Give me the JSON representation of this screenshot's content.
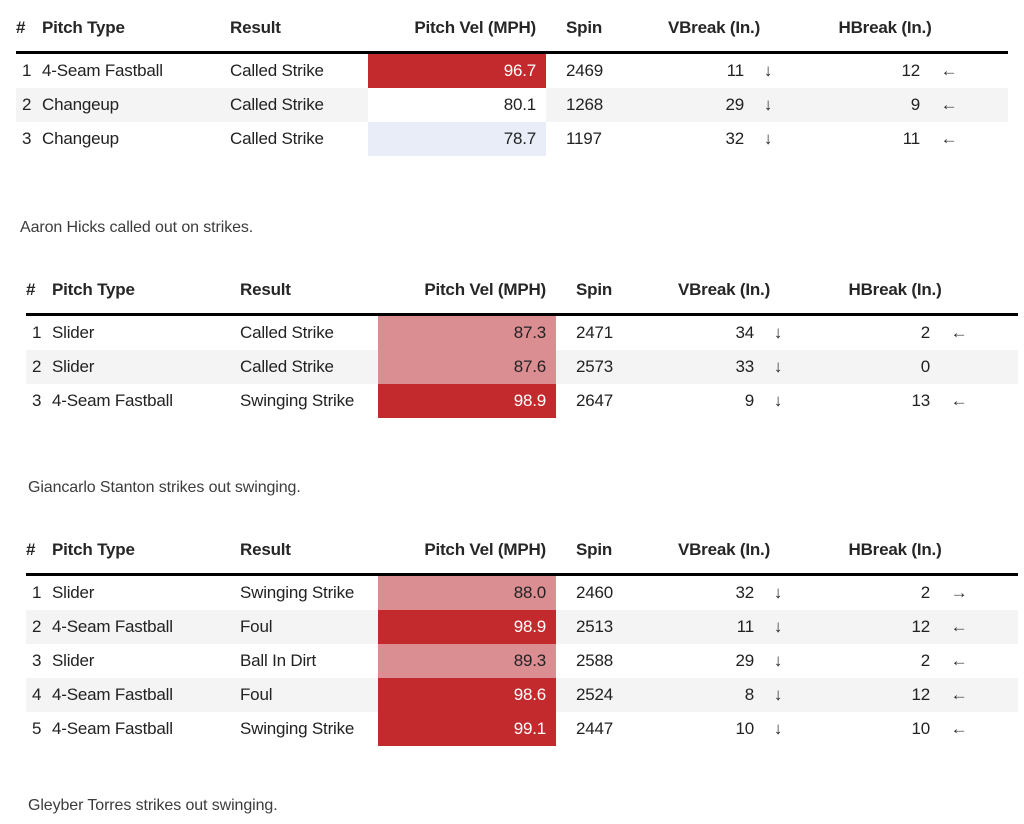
{
  "columns": {
    "num": "#",
    "pitch_type": "Pitch Type",
    "result": "Result",
    "vel": "Pitch Vel (MPH)",
    "spin": "Spin",
    "vbreak": "VBreak (In.)",
    "hbreak": "HBreak (In.)"
  },
  "colors": {
    "vel_hot": "#c32a2d",
    "vel_warm": "#db8e92",
    "vel_cool": "#e8edf7",
    "vel_neutral": "#ffffff",
    "row_stripe": "#f4f4f4",
    "header_rule": "#000000"
  },
  "chart_data": [
    {
      "type": "table",
      "caption": "Aaron Hicks called out on strikes.",
      "rows": [
        {
          "num": "1",
          "pitch_type": "4-Seam Fastball",
          "result": "Called Strike",
          "vel": "96.7",
          "vel_bg": "#c32a2d",
          "vel_color": "#ffffff",
          "spin": "2469",
          "vbreak": "11",
          "vbreak_arrow": "↓",
          "hbreak": "12",
          "hbreak_arrow": "←"
        },
        {
          "num": "2",
          "pitch_type": "Changeup",
          "result": "Called Strike",
          "vel": "80.1",
          "vel_bg": "#ffffff",
          "vel_color": "#222222",
          "spin": "1268",
          "vbreak": "29",
          "vbreak_arrow": "↓",
          "hbreak": "9",
          "hbreak_arrow": "←"
        },
        {
          "num": "3",
          "pitch_type": "Changeup",
          "result": "Called Strike",
          "vel": "78.7",
          "vel_bg": "#e8edf7",
          "vel_color": "#222222",
          "spin": "1197",
          "vbreak": "32",
          "vbreak_arrow": "↓",
          "hbreak": "11",
          "hbreak_arrow": "←"
        }
      ]
    },
    {
      "type": "table",
      "caption": "Giancarlo Stanton strikes out swinging.",
      "rows": [
        {
          "num": "1",
          "pitch_type": "Slider",
          "result": "Called Strike",
          "vel": "87.3",
          "vel_bg": "#db8e92",
          "vel_color": "#222222",
          "spin": "2471",
          "vbreak": "34",
          "vbreak_arrow": "↓",
          "hbreak": "2",
          "hbreak_arrow": "←"
        },
        {
          "num": "2",
          "pitch_type": "Slider",
          "result": "Called Strike",
          "vel": "87.6",
          "vel_bg": "#db8e92",
          "vel_color": "#222222",
          "spin": "2573",
          "vbreak": "33",
          "vbreak_arrow": "↓",
          "hbreak": "0",
          "hbreak_arrow": ""
        },
        {
          "num": "3",
          "pitch_type": "4-Seam Fastball",
          "result": "Swinging Strike",
          "vel": "98.9",
          "vel_bg": "#c32a2d",
          "vel_color": "#ffffff",
          "spin": "2647",
          "vbreak": "9",
          "vbreak_arrow": "↓",
          "hbreak": "13",
          "hbreak_arrow": "←"
        }
      ]
    },
    {
      "type": "table",
      "caption": "Gleyber Torres strikes out swinging.",
      "rows": [
        {
          "num": "1",
          "pitch_type": "Slider",
          "result": "Swinging Strike",
          "vel": "88.0",
          "vel_bg": "#db8e92",
          "vel_color": "#222222",
          "spin": "2460",
          "vbreak": "32",
          "vbreak_arrow": "↓",
          "hbreak": "2",
          "hbreak_arrow": "→"
        },
        {
          "num": "2",
          "pitch_type": "4-Seam Fastball",
          "result": "Foul",
          "vel": "98.9",
          "vel_bg": "#c32a2d",
          "vel_color": "#ffffff",
          "spin": "2513",
          "vbreak": "11",
          "vbreak_arrow": "↓",
          "hbreak": "12",
          "hbreak_arrow": "←"
        },
        {
          "num": "3",
          "pitch_type": "Slider",
          "result": "Ball In Dirt",
          "vel": "89.3",
          "vel_bg": "#db8e92",
          "vel_color": "#222222",
          "spin": "2588",
          "vbreak": "29",
          "vbreak_arrow": "↓",
          "hbreak": "2",
          "hbreak_arrow": "←"
        },
        {
          "num": "4",
          "pitch_type": "4-Seam Fastball",
          "result": "Foul",
          "vel": "98.6",
          "vel_bg": "#c32a2d",
          "vel_color": "#ffffff",
          "spin": "2524",
          "vbreak": "8",
          "vbreak_arrow": "↓",
          "hbreak": "12",
          "hbreak_arrow": "←"
        },
        {
          "num": "5",
          "pitch_type": "4-Seam Fastball",
          "result": "Swinging Strike",
          "vel": "99.1",
          "vel_bg": "#c32a2d",
          "vel_color": "#ffffff",
          "spin": "2447",
          "vbreak": "10",
          "vbreak_arrow": "↓",
          "hbreak": "10",
          "hbreak_arrow": "←"
        }
      ]
    }
  ]
}
